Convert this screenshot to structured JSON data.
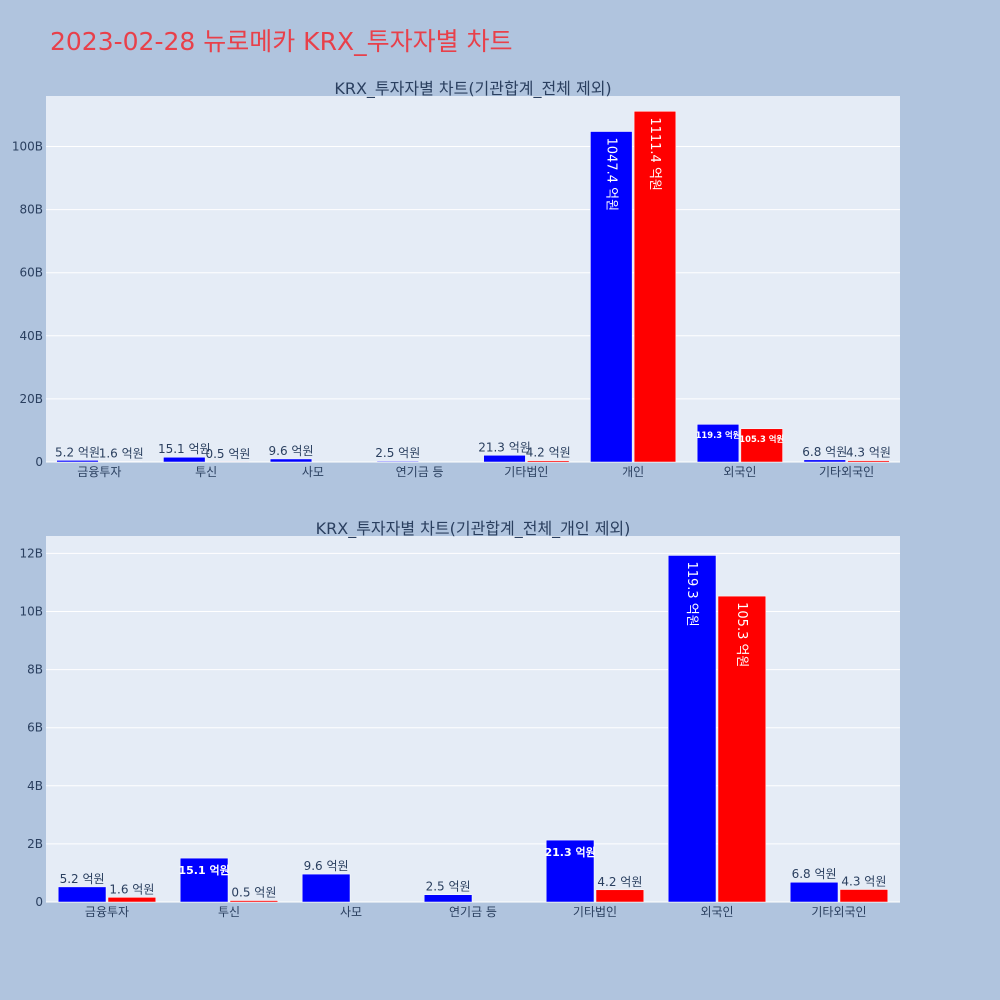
{
  "page": {
    "title": "2023-02-28 뉴로메카 KRX_투자자별 차트"
  },
  "colors": {
    "background": "#b0c4de",
    "plot_bg": "#e5ecf6",
    "buy": "#0000ff",
    "sell": "#ff0000",
    "title": "#e8404a",
    "text": "#2a3f5f"
  },
  "chart_data": [
    {
      "type": "bar",
      "title": "KRX_투자자별 차트(기관합계_전체 제외)",
      "categories": [
        "금융투자",
        "투신",
        "사모",
        "연기금 등",
        "기타법인",
        "개인",
        "외국인",
        "기타외국인"
      ],
      "series": [
        {
          "color": "#0000ff",
          "values": [
            0.52,
            1.51,
            0.96,
            0.25,
            2.13,
            104.74,
            11.93,
            0.68
          ],
          "labels": [
            "5.2 억원",
            "15.1 억원",
            "9.6 억원",
            "2.5 억원",
            "21.3 억원",
            "1047.4 억원",
            "119.3 억원",
            "6.8 억원"
          ]
        },
        {
          "color": "#ff0000",
          "values": [
            0.16,
            0.05,
            0,
            0,
            0.42,
            111.14,
            10.53,
            0.43
          ],
          "labels": [
            "1.6 억원",
            "0.5 억원",
            "",
            "",
            "4.2 억원",
            "1111.4 억원",
            "105.3 억원",
            "4.3 억원"
          ]
        }
      ],
      "yticks": [
        "0",
        "20B",
        "40B",
        "60B",
        "80B",
        "100B"
      ],
      "ytick_values": [
        0,
        20,
        40,
        60,
        80,
        100
      ],
      "ylim": [
        0,
        116
      ],
      "grid": true,
      "legend": "none"
    },
    {
      "type": "bar",
      "title": "KRX_투자자별 차트(기관합계_전체_개인 제외)",
      "categories": [
        "금융투자",
        "투신",
        "사모",
        "연기금 등",
        "기타법인",
        "외국인",
        "기타외국인"
      ],
      "series": [
        {
          "color": "#0000ff",
          "values": [
            0.52,
            1.51,
            0.96,
            0.25,
            2.13,
            11.93,
            0.68
          ],
          "labels": [
            "5.2 억원",
            "15.1 억원",
            "9.6 억원",
            "2.5 억원",
            "21.3 억원",
            "119.3 억원",
            "6.8 억원"
          ]
        },
        {
          "color": "#ff0000",
          "values": [
            0.16,
            0.05,
            0,
            0,
            0.42,
            10.53,
            0.43
          ],
          "labels": [
            "1.6 억원",
            "0.5 억원",
            "",
            "",
            "4.2 억원",
            "105.3 억원",
            "4.3 억원"
          ]
        }
      ],
      "yticks": [
        "0",
        "2B",
        "4B",
        "6B",
        "8B",
        "10B",
        "12B"
      ],
      "ytick_values": [
        0,
        2,
        4,
        6,
        8,
        10,
        12
      ],
      "ylim": [
        0,
        12.6
      ],
      "grid": true,
      "legend": "none"
    }
  ]
}
